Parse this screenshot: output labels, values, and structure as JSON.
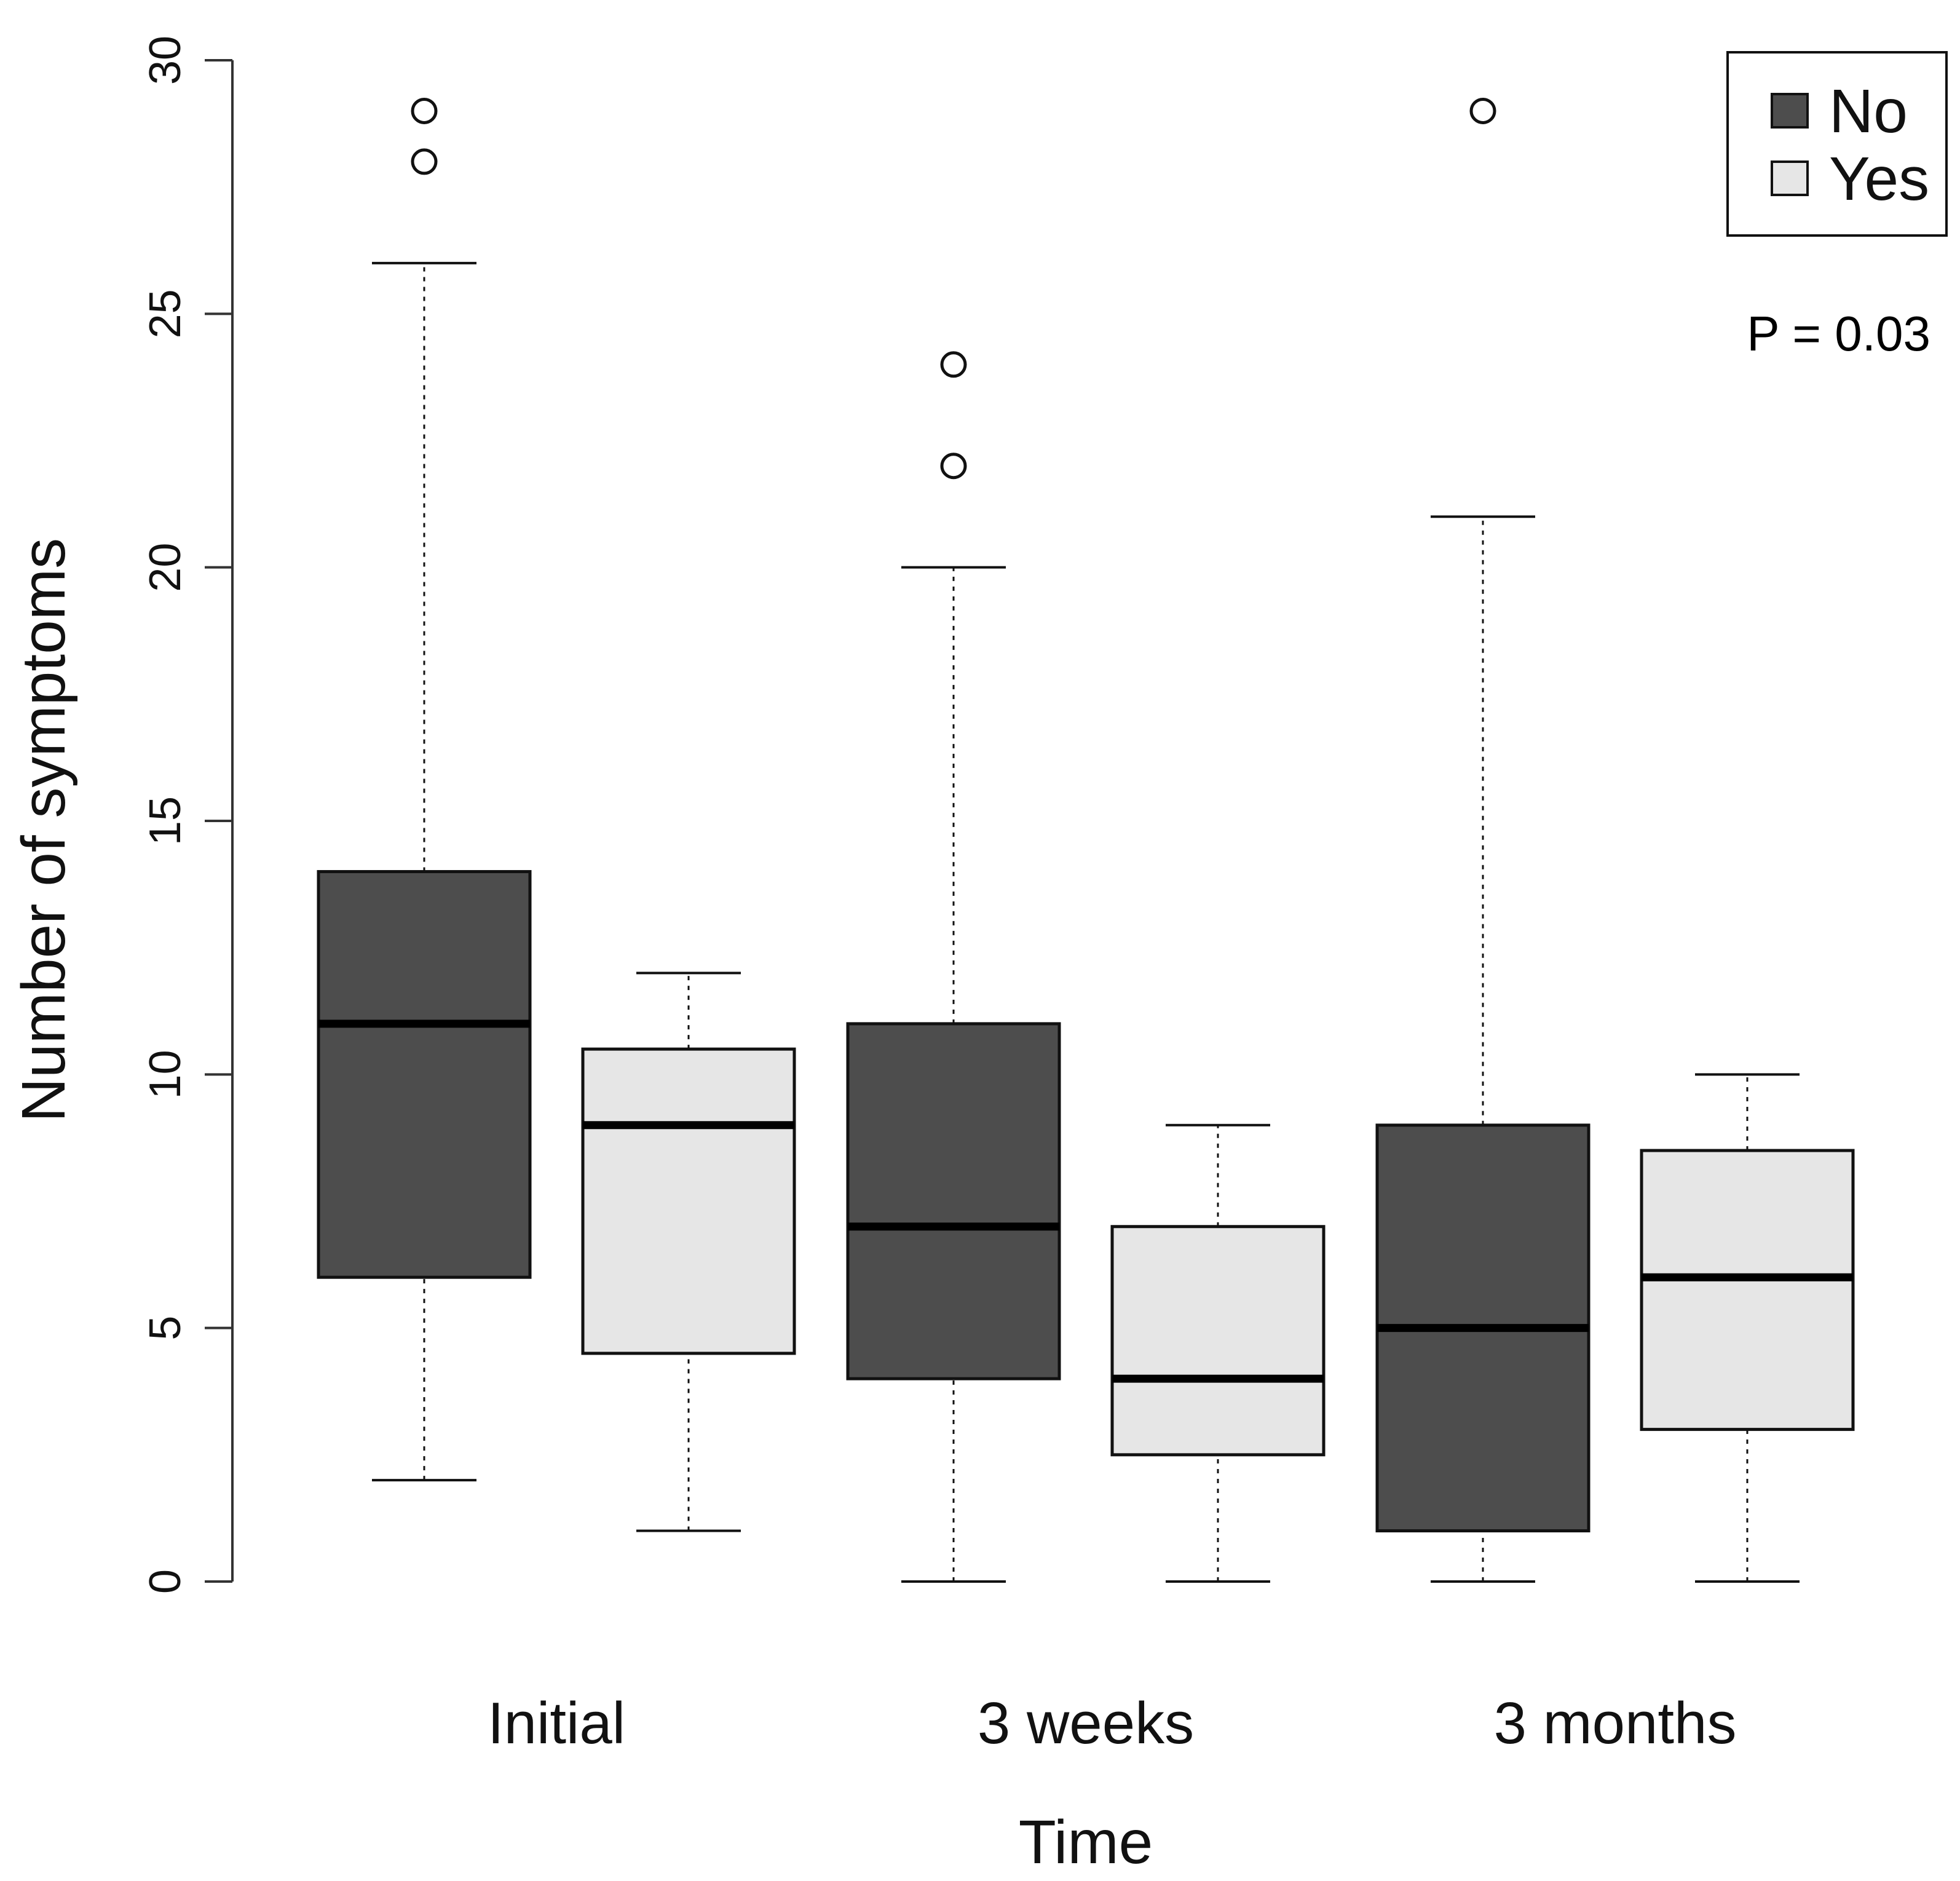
{
  "chart_data": {
    "type": "boxplot",
    "title": "",
    "xlabel": "Time",
    "ylabel": "Number of symptoms",
    "ylim": [
      0,
      30
    ],
    "yticks": [
      0,
      5,
      10,
      15,
      20,
      25,
      30
    ],
    "grid": false,
    "categories": [
      "Initial",
      "3 weeks",
      "3 months"
    ],
    "legend": {
      "position": "top-right",
      "entries": [
        {
          "name": "No",
          "color": "#4d4d4d"
        },
        {
          "name": "Yes",
          "color": "#e6e6e6"
        }
      ]
    },
    "annotation": "P = 0.03",
    "series": [
      {
        "name": "No",
        "color": "#4d4d4d",
        "boxes": [
          {
            "category": "Initial",
            "min": 2,
            "q1": 6,
            "median": 11,
            "q3": 14,
            "max": 26,
            "outliers": [
              28,
              29
            ]
          },
          {
            "category": "3 weeks",
            "min": 0,
            "q1": 4,
            "median": 7,
            "q3": 11,
            "max": 20,
            "outliers": [
              22,
              24
            ]
          },
          {
            "category": "3 months",
            "min": 0,
            "q1": 1,
            "median": 5,
            "q3": 9,
            "max": 21,
            "outliers": [
              29
            ]
          }
        ]
      },
      {
        "name": "Yes",
        "color": "#e6e6e6",
        "boxes": [
          {
            "category": "Initial",
            "min": 1,
            "q1": 4.5,
            "median": 9,
            "q3": 10.5,
            "max": 12,
            "outliers": []
          },
          {
            "category": "3 weeks",
            "min": 0,
            "q1": 2.5,
            "median": 4,
            "q3": 7,
            "max": 9,
            "outliers": []
          },
          {
            "category": "3 months",
            "min": 0,
            "q1": 3,
            "median": 6,
            "q3": 8.5,
            "max": 10,
            "outliers": []
          }
        ]
      }
    ]
  }
}
